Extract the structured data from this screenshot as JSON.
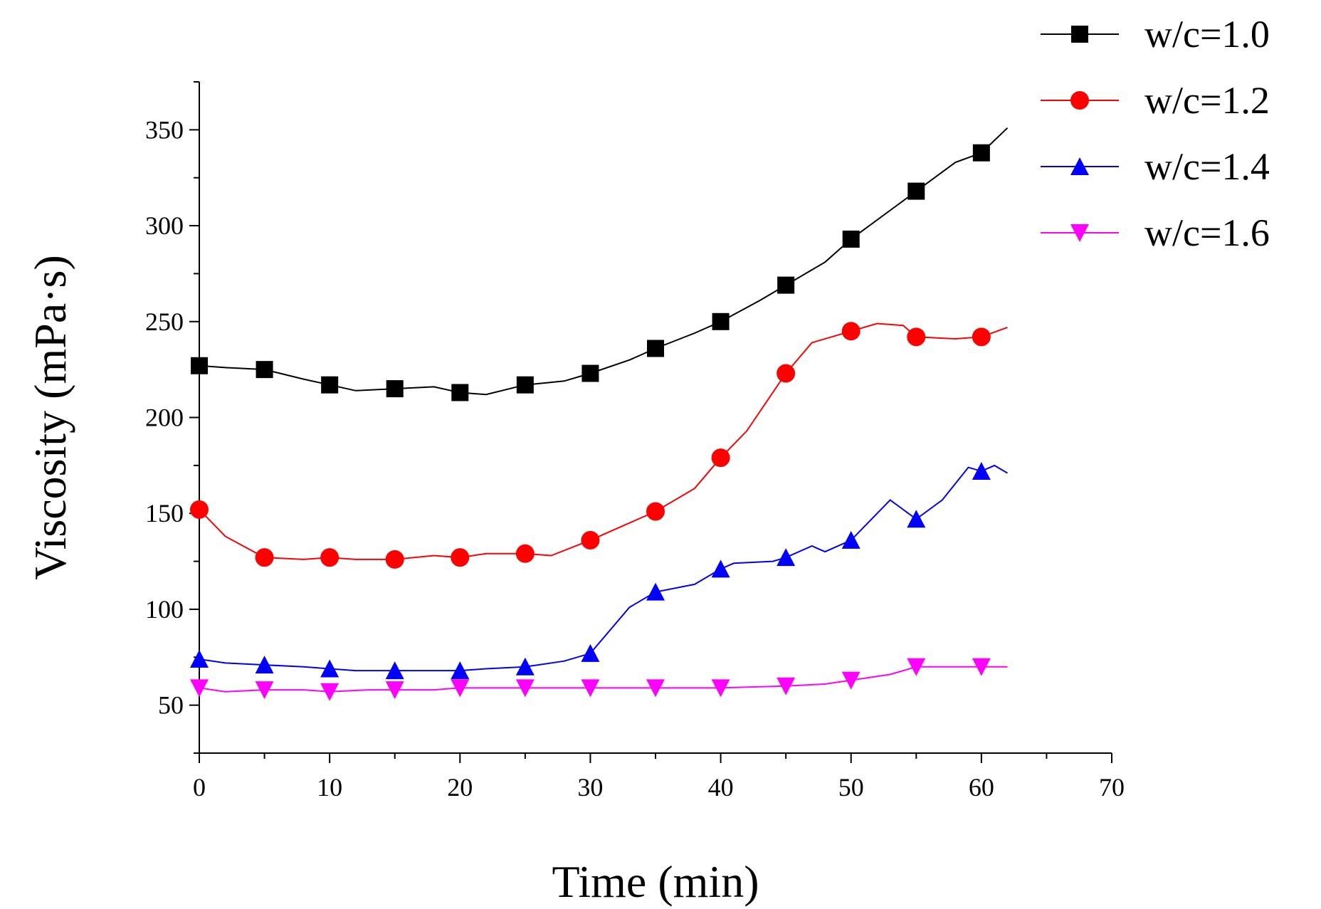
{
  "chart_data": {
    "type": "line",
    "title": "",
    "xlabel": "Time (min)",
    "ylabel": "Viscosity (mPa·s)",
    "xlim": [
      0,
      70
    ],
    "ylim": [
      25,
      375
    ],
    "x_ticks": [
      0,
      10,
      20,
      30,
      40,
      50,
      60,
      70
    ],
    "y_ticks": [
      50,
      100,
      150,
      200,
      250,
      300,
      350
    ],
    "x_tick_labels": [
      "0",
      "10",
      "20",
      "30",
      "40",
      "50",
      "60",
      "70"
    ],
    "y_tick_labels": [
      "50",
      "100",
      "150",
      "200",
      "250",
      "300",
      "350"
    ],
    "grid": false,
    "legend_position": "top-right outside plot",
    "series": [
      {
        "name": "w/c=1.0",
        "color": "#000000",
        "marker": "square",
        "marker_x": [
          0,
          5,
          10,
          15,
          20,
          25,
          30,
          35,
          40,
          45,
          50,
          55,
          60
        ],
        "marker_y": [
          227,
          225,
          217,
          215,
          213,
          217,
          223,
          236,
          250,
          269,
          293,
          318,
          338
        ],
        "line_x": [
          0,
          2,
          5,
          8,
          10,
          12,
          15,
          18,
          20,
          22,
          25,
          28,
          30,
          33,
          35,
          38,
          40,
          43,
          45,
          48,
          50,
          53,
          55,
          58,
          60,
          62
        ],
        "line_y": [
          227,
          226,
          225,
          220,
          217,
          214,
          215,
          216,
          213,
          212,
          217,
          219,
          223,
          230,
          236,
          244,
          250,
          261,
          269,
          281,
          293,
          308,
          318,
          333,
          338,
          351
        ]
      },
      {
        "name": "w/c=1.2",
        "color": "#ff0000",
        "marker": "circle",
        "marker_x": [
          0,
          5,
          10,
          15,
          20,
          25,
          30,
          35,
          40,
          45,
          50,
          55,
          60
        ],
        "marker_y": [
          152,
          127,
          127,
          126,
          127,
          129,
          136,
          151,
          179,
          223,
          245,
          242,
          242
        ],
        "line_x": [
          0,
          2,
          5,
          8,
          10,
          12,
          15,
          18,
          20,
          22,
          25,
          27,
          30,
          33,
          35,
          38,
          40,
          42,
          45,
          47,
          50,
          52,
          54,
          55,
          58,
          60,
          62
        ],
        "line_y": [
          152,
          138,
          127,
          126,
          127,
          126,
          126,
          128,
          127,
          129,
          129,
          128,
          136,
          145,
          151,
          163,
          179,
          193,
          223,
          239,
          245,
          249,
          248,
          242,
          241,
          242,
          247
        ]
      },
      {
        "name": "w/c=1.4",
        "color": "#0000ff",
        "marker": "triangle-up",
        "marker_x": [
          0,
          5,
          10,
          15,
          20,
          25,
          30,
          35,
          40,
          45,
          50,
          55,
          60
        ],
        "marker_y": [
          74,
          71,
          69,
          68,
          68,
          70,
          77,
          109,
          121,
          127,
          136,
          147,
          172
        ],
        "line_x": [
          0,
          2,
          5,
          8,
          10,
          12,
          15,
          18,
          20,
          22,
          25,
          28,
          30,
          33,
          35,
          38,
          40,
          41,
          44,
          45,
          47,
          48,
          50,
          53,
          55,
          57,
          59,
          60,
          61,
          62
        ],
        "line_y": [
          74,
          72,
          71,
          70,
          69,
          68,
          68,
          68,
          68,
          69,
          70,
          73,
          77,
          101,
          109,
          113,
          121,
          124,
          125,
          127,
          133,
          130,
          136,
          157,
          147,
          157,
          174,
          172,
          175,
          171
        ]
      },
      {
        "name": "w/c=1.6",
        "color": "#ff00ff",
        "marker": "triangle-down",
        "marker_x": [
          0,
          5,
          10,
          15,
          20,
          25,
          30,
          35,
          40,
          45,
          50,
          55,
          60
        ],
        "marker_y": [
          59,
          58,
          57,
          58,
          59,
          59,
          59,
          59,
          59,
          60,
          63,
          70,
          70
        ],
        "line_x": [
          0,
          2,
          5,
          8,
          10,
          13,
          15,
          18,
          20,
          25,
          30,
          35,
          40,
          45,
          48,
          50,
          53,
          55,
          58,
          60,
          62
        ],
        "line_y": [
          59,
          57,
          58,
          58,
          57,
          58,
          58,
          58,
          59,
          59,
          59,
          59,
          59,
          60,
          61,
          63,
          66,
          70,
          70,
          70,
          70
        ]
      }
    ]
  }
}
